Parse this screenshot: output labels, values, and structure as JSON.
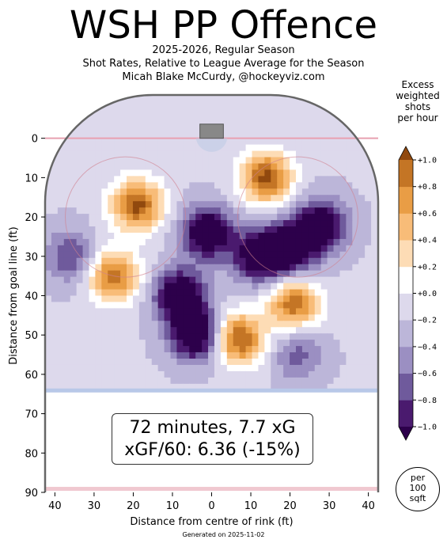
{
  "header": {
    "title": "WSH PP Offence",
    "subtitle_1": "2025-2026, Regular Season",
    "subtitle_2": "Shot Rates, Relative to League Average for the Season",
    "subtitle_3": "Micah Blake McCurdy, @hockeyviz.com"
  },
  "info": {
    "line_1": "72 minutes, 7.7 xG",
    "line_2": "xGF/60: 6.36 (-15%)"
  },
  "unit_badge": {
    "line_1": "per",
    "line_2": "100",
    "line_3": "sqft"
  },
  "colorbar": {
    "title_1": "Excess",
    "title_2": "weighted",
    "title_3": "shots",
    "title_4": "per hour",
    "levels": [
      -1.0,
      -0.8,
      -0.6,
      -0.4,
      -0.2,
      0.0,
      0.2,
      0.4,
      0.6,
      0.8,
      1.0
    ],
    "tick_labels": [
      "−1.0",
      "−0.8",
      "−0.6",
      "−0.4",
      "−0.2",
      "+0.0",
      "+0.2",
      "+0.4",
      "+0.6",
      "+0.8",
      "+1.0"
    ],
    "colors": [
      "#2d004b",
      "#4a1a6e",
      "#6f5a9c",
      "#9b8fc2",
      "#bcb6d9",
      "#ddd9ec",
      "#ffffff",
      "#fddcb5",
      "#f8bc78",
      "#e99d45",
      "#c47525",
      "#91490e"
    ]
  },
  "footer": {
    "generated": "Generated on 2025-11-02"
  },
  "chart_data": {
    "type": "heatmap",
    "xlabel": "Distance from centre of rink (ft)",
    "ylabel": "Distance from goal line (ft)",
    "xlim": [
      -42.5,
      42.5
    ],
    "ylim": [
      90,
      -11
    ],
    "x_ticks": [
      -40,
      -30,
      -20,
      -10,
      0,
      10,
      20,
      30,
      40
    ],
    "x_tick_labels": [
      "40",
      "30",
      "20",
      "10",
      "0",
      "10",
      "20",
      "30",
      "40"
    ],
    "y_ticks": [
      0,
      10,
      20,
      30,
      40,
      50,
      60,
      70,
      80,
      90
    ],
    "y_tick_labels": [
      "0",
      "10",
      "20",
      "30",
      "40",
      "50",
      "60",
      "70",
      "80",
      "90"
    ],
    "value_range": [
      -1.0,
      1.0
    ],
    "features": [
      {
        "x": -1,
        "y": 24,
        "value": -1.0
      },
      {
        "x": -8,
        "y": 40,
        "value": -1.0
      },
      {
        "x": -4,
        "y": 50,
        "value": -1.0
      },
      {
        "x": 20,
        "y": 28,
        "value": -1.0
      },
      {
        "x": 28,
        "y": 22,
        "value": -0.9
      },
      {
        "x": 12,
        "y": 30,
        "value": -0.9
      },
      {
        "x": -36,
        "y": 30,
        "value": -0.5
      },
      {
        "x": 14,
        "y": 10,
        "value": 1.0
      },
      {
        "x": -19,
        "y": 17,
        "value": 1.0
      },
      {
        "x": -25,
        "y": 35,
        "value": 0.9
      },
      {
        "x": 7,
        "y": 51,
        "value": 1.0
      },
      {
        "x": 21,
        "y": 42,
        "value": 0.9
      },
      {
        "x": 22,
        "y": 55,
        "value": -0.4
      }
    ]
  }
}
